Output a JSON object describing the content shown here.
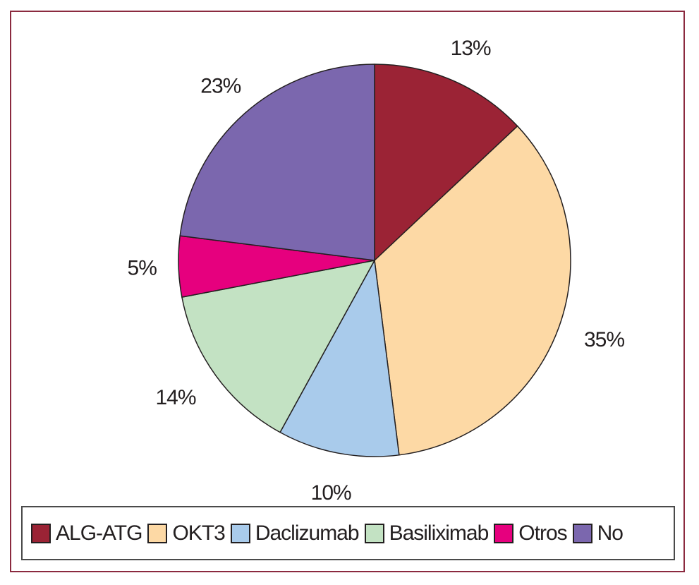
{
  "chart_data": {
    "type": "pie",
    "title": "",
    "slices": [
      {
        "name": "ALG-ATG",
        "value": 13,
        "label": "13%",
        "color": "#9b2335"
      },
      {
        "name": "OKT3",
        "value": 35,
        "label": "35%",
        "color": "#fdd9a5"
      },
      {
        "name": "Daclizumab",
        "value": 10,
        "label": "10%",
        "color": "#a9cbeb"
      },
      {
        "name": "Basiliximab",
        "value": 14,
        "label": "14%",
        "color": "#c3e2c3"
      },
      {
        "name": "Otros",
        "value": 5,
        "label": "5%",
        "color": "#e6007e"
      },
      {
        "name": "No",
        "value": 23,
        "label": "23%",
        "color": "#7b67ae"
      }
    ],
    "start_angle": "12 o'clock",
    "direction": "clockwise",
    "legend_position": "bottom"
  },
  "colors": {
    "frame_border": "#8b2a3f",
    "slice_outline": "#231f20",
    "text": "#231f20"
  }
}
